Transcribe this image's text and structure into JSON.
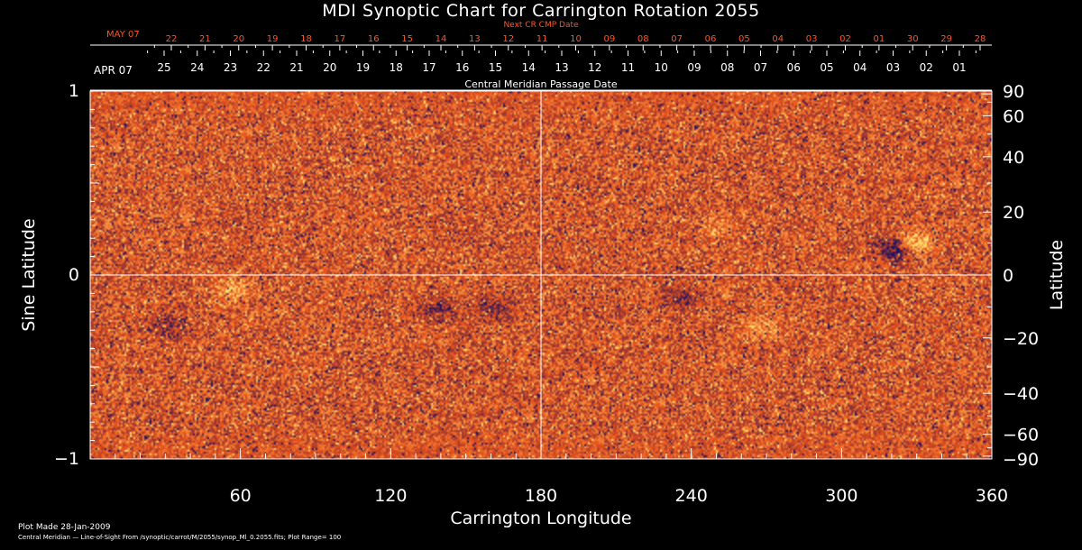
{
  "chart_data": {
    "type": "heatmap",
    "title": "MDI Synoptic Chart for Carrington Rotation 2055",
    "next_cr_label": "Next CR CMP Date",
    "central_meridian_label": "Central Meridian Passage Date",
    "top_month_label": "MAY 07",
    "bottom_month_label": "APR 07",
    "top_dates": [
      "22",
      "21",
      "20",
      "19",
      "18",
      "17",
      "16",
      "15",
      "14",
      "13",
      "12",
      "11",
      "10",
      "09",
      "08",
      "07",
      "06",
      "05",
      "04",
      "03",
      "02",
      "01",
      "30",
      "29",
      "28"
    ],
    "bottom_dates": [
      "25",
      "24",
      "23",
      "22",
      "21",
      "20",
      "19",
      "18",
      "17",
      "16",
      "15",
      "14",
      "13",
      "12",
      "11",
      "10",
      "09",
      "08",
      "07",
      "06",
      "05",
      "04",
      "03",
      "02",
      "01"
    ],
    "xlabel": "Carrington Longitude",
    "ylabel_left": "Sine Latitude",
    "ylabel_right": "Latitude",
    "xlim": [
      0,
      360
    ],
    "x_ticks": [
      60,
      120,
      180,
      240,
      300,
      360
    ],
    "x_tick_labels": [
      "60",
      "120",
      "180",
      "240",
      "300",
      "360"
    ],
    "y_left_ticks": [
      1,
      0,
      -1
    ],
    "y_left_tick_labels": [
      "1",
      "0",
      "−1"
    ],
    "y_right_ticks": [
      90,
      60,
      40,
      20,
      0,
      -20,
      -40,
      -60,
      -90
    ],
    "y_right_tick_labels": [
      "90",
      "60",
      "40",
      "20",
      "0",
      "−20",
      "−40",
      "−60",
      "−90"
    ],
    "footer_line1": "Plot Made 28-Jan-2009",
    "footer_line2": "Central Meridian — Line-of-Sight From /synoptic/carrot/M/2055/synop_Ml_0.2055.fits; Plot Range=  100",
    "colors": {
      "base": "#e8501a",
      "bright": "#ffe070",
      "dark": "#1a1060",
      "red_text": "#ff5522"
    },
    "features": [
      {
        "lon": 330,
        "sinlat": 0.17,
        "polarity": "positive",
        "strength": 1.0
      },
      {
        "lon": 322,
        "sinlat": 0.14,
        "polarity": "negative",
        "strength": 1.0
      },
      {
        "lon": 57,
        "sinlat": -0.08,
        "polarity": "positive",
        "strength": 0.6
      },
      {
        "lon": 30,
        "sinlat": -0.28,
        "polarity": "negative",
        "strength": 0.5
      },
      {
        "lon": 140,
        "sinlat": -0.18,
        "polarity": "negative",
        "strength": 0.5
      },
      {
        "lon": 162,
        "sinlat": -0.18,
        "polarity": "negative",
        "strength": 0.5
      },
      {
        "lon": 235,
        "sinlat": -0.12,
        "polarity": "negative",
        "strength": 0.5
      },
      {
        "lon": 268,
        "sinlat": -0.28,
        "polarity": "positive",
        "strength": 0.5
      },
      {
        "lon": 250,
        "sinlat": 0.25,
        "polarity": "positive",
        "strength": 0.4
      }
    ]
  }
}
